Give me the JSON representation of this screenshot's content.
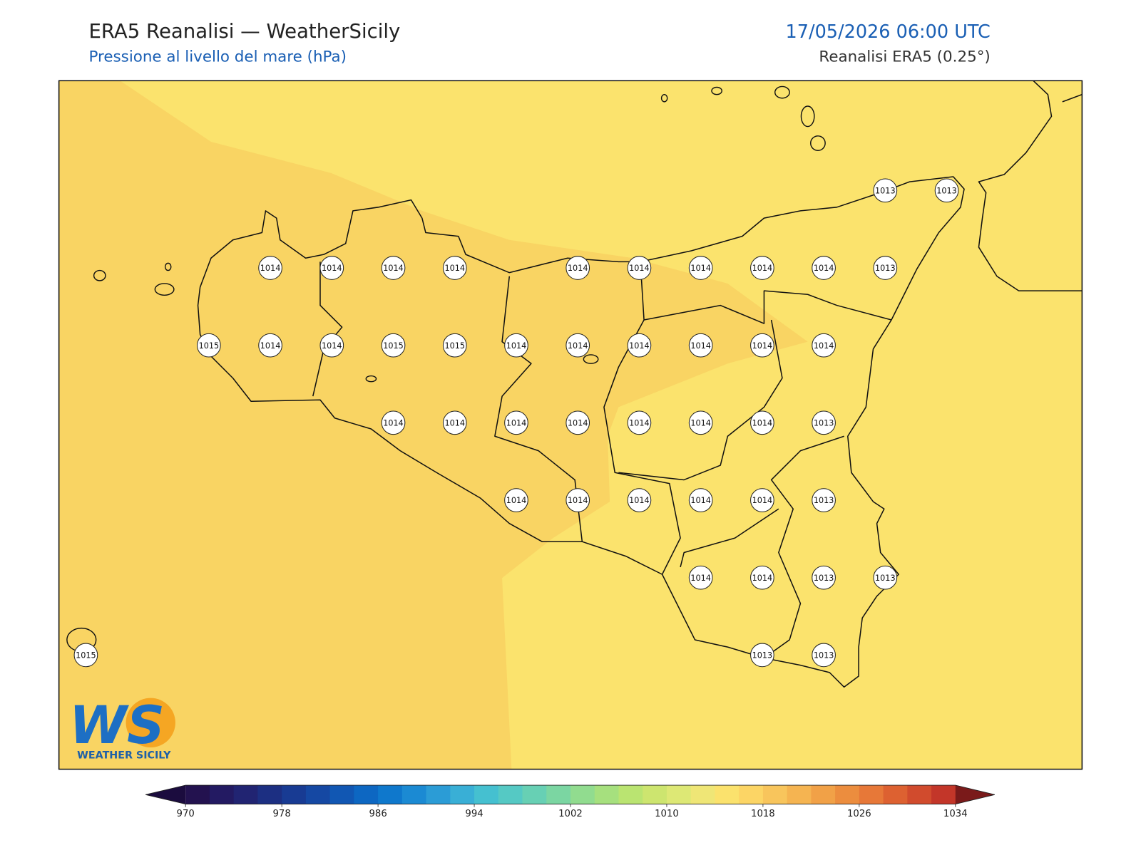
{
  "header": {
    "title": "ERA5 Reanalisi — WeatherSicily",
    "subtitle": "Pressione al livello del mare (hPa)",
    "datetime": "17/05/2026 06:00 UTC",
    "source": "Reanalisi ERA5 (0.25°)"
  },
  "stations": [
    1013,
    1013,
    1014,
    1014,
    1014,
    1014,
    1014,
    1014,
    1014,
    1014,
    1014,
    1013,
    1015,
    1014,
    1014,
    1015,
    1015,
    1014,
    1014,
    1014,
    1014,
    1014,
    1014,
    1014,
    1014,
    1014,
    1014,
    1014,
    1014,
    1014,
    1013,
    1014,
    1014,
    1014,
    1014,
    1014,
    1013,
    1014,
    1014,
    1013,
    1013,
    1015,
    1013,
    1013
  ],
  "colorbar": {
    "ticks": [
      970,
      978,
      986,
      994,
      1002,
      1010,
      1018,
      1026,
      1034
    ],
    "colors": [
      "#23124f",
      "#231a62",
      "#212472",
      "#1c2f82",
      "#183b93",
      "#1548a3",
      "#1157b3",
      "#0d67c2",
      "#0f78cc",
      "#1b8ad3",
      "#2b9cd6",
      "#39afd6",
      "#45c0d0",
      "#55c9c4",
      "#67d0b4",
      "#7bd6a2",
      "#91dc8f",
      "#a6e07e",
      "#bae471",
      "#cde56f",
      "#dde875",
      "#efe676",
      "#fbe26d",
      "#fcd565",
      "#f8c55c",
      "#f5b451",
      "#f1a147",
      "#ec8d3e",
      "#e77838",
      "#dd6131",
      "#d14b2d",
      "#c33629"
    ],
    "extend_colors": [
      "#1b0c3e",
      "#7a1a1a"
    ]
  },
  "logo": {
    "mark": "WS",
    "name": "WEATHER SICILY"
  }
}
